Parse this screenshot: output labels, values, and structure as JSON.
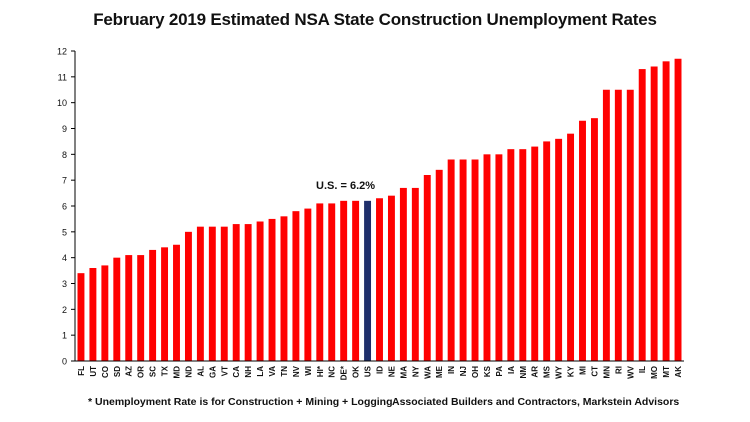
{
  "chart_data": {
    "type": "bar",
    "title": "February 2019 Estimated NSA State Construction Unemployment Rates",
    "xlabel": "",
    "ylabel": "",
    "ylim": [
      0,
      12
    ],
    "yticks": [
      "0",
      "1",
      "2",
      "3",
      "4",
      "5",
      "6",
      "7",
      "8",
      "9",
      "10",
      "11",
      "12"
    ],
    "grid": false,
    "categories": [
      "FL",
      "UT",
      "CO",
      "SD",
      "AZ",
      "OR",
      "SC",
      "TX",
      "MD",
      "ND",
      "AL",
      "GA",
      "VT",
      "CA",
      "NH",
      "LA",
      "VA",
      "TN",
      "NV",
      "WI",
      "HI*",
      "NC",
      "DE*",
      "OK",
      "US",
      "ID",
      "NE",
      "MA",
      "NY",
      "WA",
      "ME",
      "IN",
      "NJ",
      "OH",
      "KS",
      "PA",
      "IA",
      "NM",
      "AR",
      "MS",
      "WY",
      "KY",
      "MI",
      "CT",
      "MN",
      "RI",
      "WV",
      "IL",
      "MO",
      "MT",
      "AK"
    ],
    "values": [
      3.4,
      3.6,
      3.7,
      4.0,
      4.1,
      4.1,
      4.3,
      4.4,
      4.5,
      5.0,
      5.2,
      5.2,
      5.2,
      5.3,
      5.3,
      5.4,
      5.5,
      5.6,
      5.8,
      5.9,
      6.1,
      6.1,
      6.2,
      6.2,
      6.2,
      6.3,
      6.4,
      6.7,
      6.7,
      7.2,
      7.4,
      7.8,
      7.8,
      7.8,
      8.0,
      8.0,
      8.2,
      8.2,
      8.3,
      8.5,
      8.6,
      8.8,
      9.3,
      9.4,
      10.5,
      10.5,
      10.5,
      11.3,
      11.4,
      11.6,
      11.7
    ],
    "highlight_category": "US",
    "annotation": "U.S. = 6.2%",
    "colors": {
      "bar": "#ff0000",
      "highlight": "#1f2f6b",
      "axis": "#000000",
      "text": "#111111"
    }
  },
  "footer": {
    "note": "* Unemployment Rate is for Construction + Mining + Logging",
    "source": "Associated Builders and Contractors, Markstein Advisors"
  }
}
